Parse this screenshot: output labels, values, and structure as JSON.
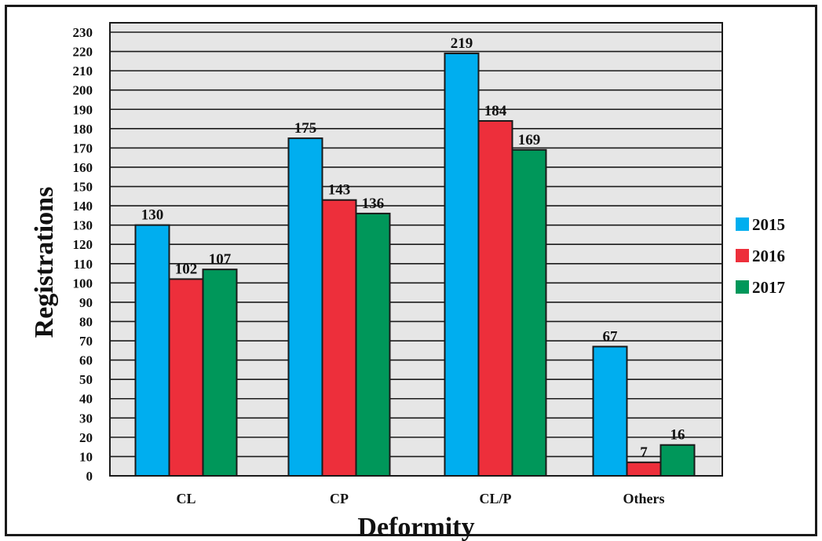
{
  "chart_data": {
    "type": "bar",
    "categories": [
      "CL",
      "CP",
      "CL/P",
      "Others"
    ],
    "series": [
      {
        "name": "2015",
        "values": [
          130,
          175,
          219,
          67
        ],
        "color": "#00aeef"
      },
      {
        "name": "2016",
        "values": [
          102,
          143,
          184,
          7
        ],
        "color": "#ed2f3b"
      },
      {
        "name": "2017",
        "values": [
          107,
          136,
          169,
          16
        ],
        "color": "#00975a"
      }
    ],
    "xlabel": "Deformity",
    "ylabel": "Registrations",
    "ylim": [
      0,
      230
    ],
    "ytick_step": 10,
    "grid": "horizontal",
    "legend_position": "right",
    "plot_background": "#e6e6e6"
  }
}
